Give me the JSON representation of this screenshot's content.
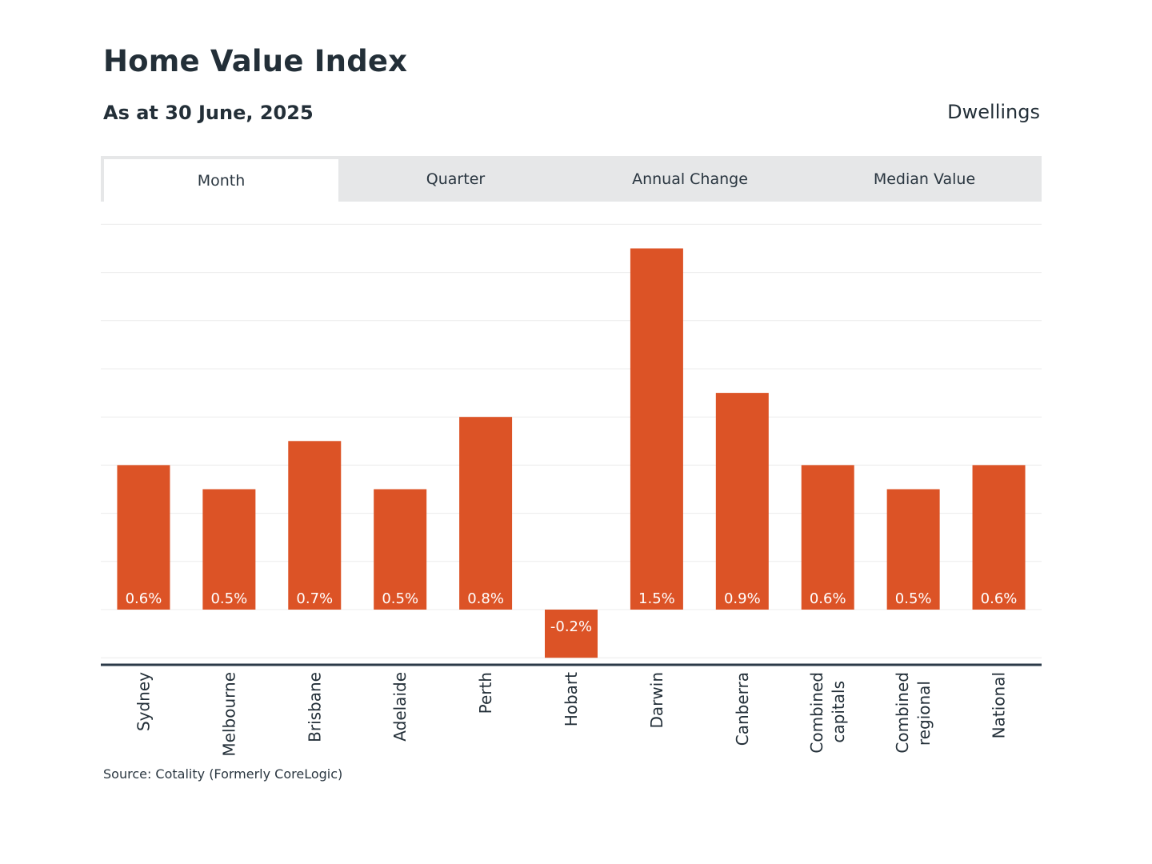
{
  "header": {
    "title": "Home Value Index",
    "subtitle": "As at 30 June, 2025",
    "measure": "Dwellings"
  },
  "tabs": [
    {
      "label": "Month",
      "active": true
    },
    {
      "label": "Quarter",
      "active": false
    },
    {
      "label": "Annual Change",
      "active": false
    },
    {
      "label": "Median Value",
      "active": false
    }
  ],
  "footer": {
    "source": "Source: Cotality (Formerly CoreLogic)"
  },
  "colors": {
    "bar": "#dc5326",
    "grid": "#ececec",
    "axis": "#2b3a48",
    "label": "#ffffff",
    "text": "#232f38"
  },
  "chart_data": {
    "type": "bar",
    "title": "Home Value Index",
    "xlabel": "",
    "ylabel": "",
    "ylim": [
      -0.3,
      1.6
    ],
    "grid_step": 0.2,
    "categories": [
      "Sydney",
      "Melbourne",
      "Brisbane",
      "Adelaide",
      "Perth",
      "Hobart",
      "Darwin",
      "Canberra",
      "Combined capitals",
      "Combined regional",
      "National"
    ],
    "category_lines": [
      [
        "Sydney"
      ],
      [
        "Melbourne"
      ],
      [
        "Brisbane"
      ],
      [
        "Adelaide"
      ],
      [
        "Perth"
      ],
      [
        "Hobart"
      ],
      [
        "Darwin"
      ],
      [
        "Canberra"
      ],
      [
        "Combined",
        "capitals"
      ],
      [
        "Combined",
        "regional"
      ],
      [
        "National"
      ]
    ],
    "values": [
      0.6,
      0.5,
      0.7,
      0.5,
      0.8,
      -0.2,
      1.5,
      0.9,
      0.6,
      0.5,
      0.6
    ],
    "value_labels": [
      "0.6%",
      "0.5%",
      "0.7%",
      "0.5%",
      "0.8%",
      "-0.2%",
      "1.5%",
      "0.9%",
      "0.6%",
      "0.5%",
      "0.6%"
    ]
  }
}
